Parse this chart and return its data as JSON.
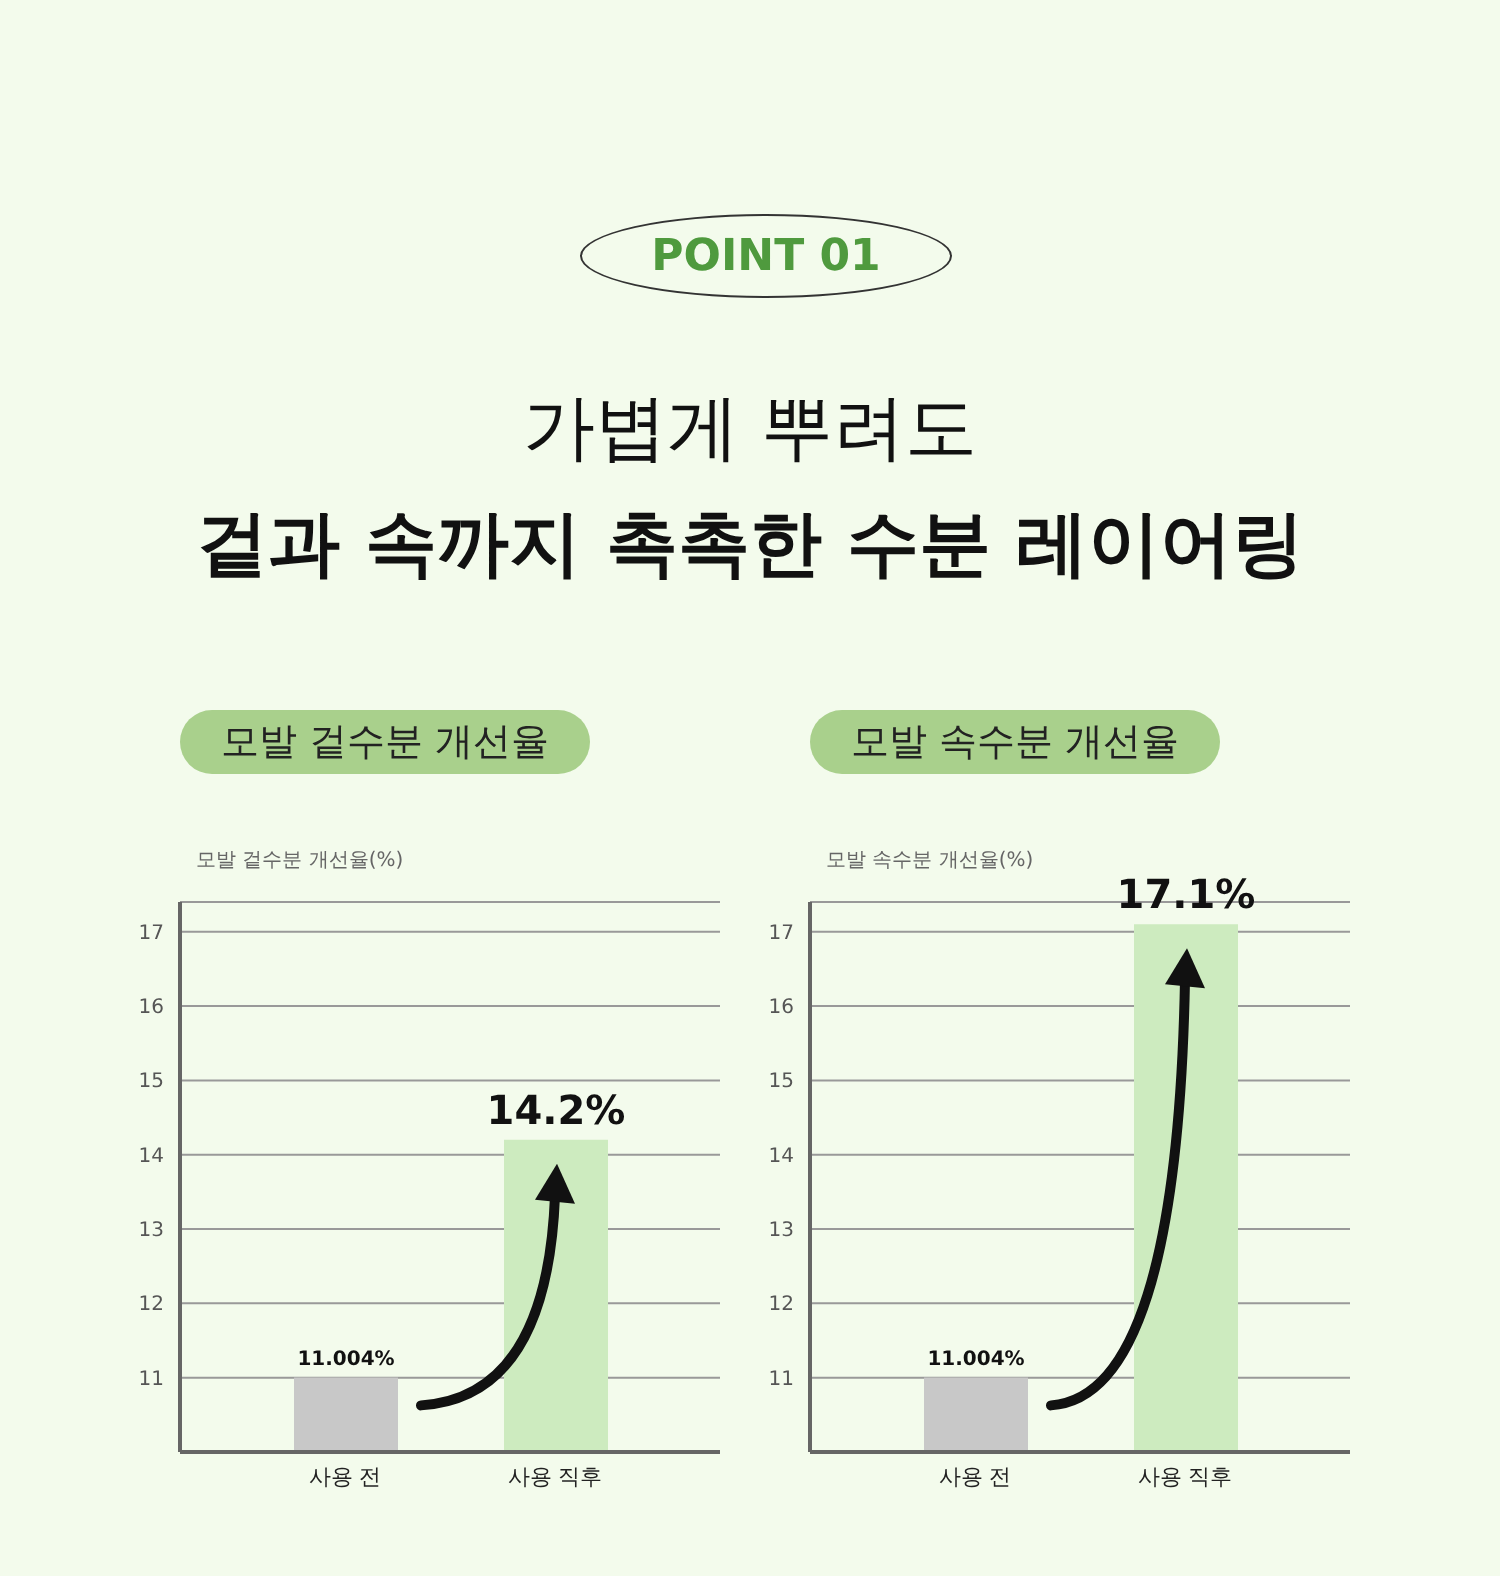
{
  "chart_data": [
    {
      "type": "bar",
      "title": "모발 겉수분 개선율",
      "ylabel": "모발 겉수분 개선율(%)",
      "categories": [
        "사용 전",
        "사용 직후"
      ],
      "values": [
        11.004,
        14.2
      ],
      "colors": [
        "#c8c8c8",
        "#cdebbf"
      ],
      "value_labels": [
        "11.004%",
        "14.2%"
      ],
      "ylim": [
        10,
        17.4
      ],
      "yticks": [
        11,
        12,
        13,
        14,
        15,
        16,
        17
      ],
      "grid": "y",
      "annotations": [
        "POINT 01",
        "가볍게 뿌려도",
        "겉과 속까지 촉촉한 수분 레이어링"
      ]
    },
    {
      "type": "bar",
      "title": "모발 속수분 개선율",
      "ylabel": "모발 속수분 개선율(%)",
      "categories": [
        "사용 전",
        "사용 직후"
      ],
      "values": [
        11.004,
        17.1
      ],
      "colors": [
        "#c8c8c8",
        "#cdebbf"
      ],
      "value_labels": [
        "11.004%",
        "17.1%"
      ],
      "ylim": [
        10,
        17.4
      ],
      "yticks": [
        11,
        12,
        13,
        14,
        15,
        16,
        17
      ],
      "grid": "y"
    }
  ]
}
